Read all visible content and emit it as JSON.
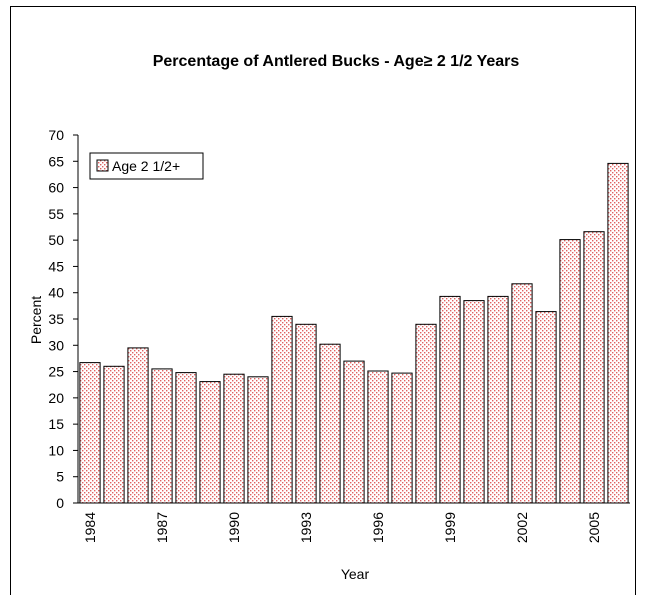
{
  "chart_data": {
    "type": "bar",
    "title": "Percentage of Antlered Bucks - Age≥ 2 1/2 Years",
    "xlabel": "Year",
    "ylabel": "Percent",
    "ylim": [
      0,
      70
    ],
    "yticks": [
      0,
      5,
      10,
      15,
      20,
      25,
      30,
      35,
      40,
      45,
      50,
      55,
      60,
      65,
      70
    ],
    "grid": false,
    "legend_position": "top-left",
    "categories": [
      "1984",
      "1985",
      "1986",
      "1987",
      "1988",
      "1989",
      "1990",
      "1991",
      "1992",
      "1993",
      "1994",
      "1995",
      "1996",
      "1997",
      "1998",
      "1999",
      "2000",
      "2001",
      "2002",
      "2003",
      "2004",
      "2005",
      "2006"
    ],
    "xtick_labels": [
      "1984",
      "",
      "",
      "1987",
      "",
      "",
      "1990",
      "",
      "",
      "1993",
      "",
      "",
      "1996",
      "",
      "",
      "1999",
      "",
      "",
      "2002",
      "",
      "",
      "2005",
      ""
    ],
    "series": [
      {
        "name": "Age 2 1/2+",
        "color": "#e06060",
        "values": [
          26.7,
          26.0,
          29.5,
          25.5,
          24.8,
          23.1,
          24.5,
          24.0,
          35.5,
          34.0,
          30.2,
          27.0,
          25.1,
          24.7,
          34.0,
          39.3,
          38.5,
          39.3,
          41.7,
          36.4,
          50.1,
          51.6,
          64.6
        ]
      }
    ]
  }
}
